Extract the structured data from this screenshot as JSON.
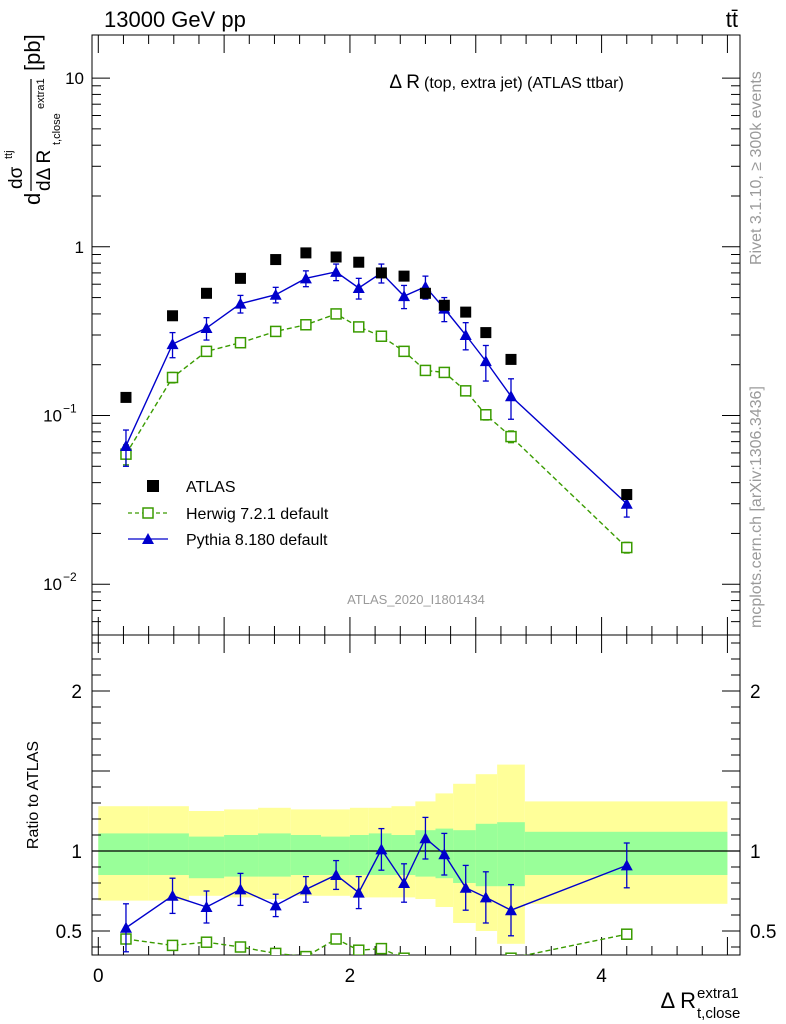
{
  "header": {
    "energy_label": "13000 GeV pp",
    "process_label": "tt̄"
  },
  "side_labels": {
    "rivet": "Rivet 3.1.10, ≥ 300k events",
    "mcplots": "mcplots.cern.ch [arXiv:1306.3436]"
  },
  "plot": {
    "title_main": "Δ R",
    "title_sub": "(top, extra jet) (ATLAS ttbar)",
    "analysis_id": "ATLAS_2020_I1801434",
    "y_label_main": "d",
    "y_label_frac_num": "dσ",
    "y_label_frac_num_sup": "ttj",
    "y_label_frac_den": "dΔ R",
    "y_label_frac_den_sub": "t,close",
    "y_label_frac_den_sup": "extra1",
    "y_label_unit": "[pb]",
    "ratio_y_label": "Ratio to ATLAS",
    "x_label_main": "Δ R",
    "x_label_sup": "extra1",
    "x_label_sub": "t,close"
  },
  "legend": [
    {
      "name": "ATLAS",
      "color": "#000000",
      "marker": "filled-square"
    },
    {
      "name": "Herwig 7.2.1 default",
      "color": "#3a9b00",
      "marker": "open-square-dashed"
    },
    {
      "name": "Pythia 8.180 default",
      "color": "#0000cc",
      "marker": "filled-triangle"
    }
  ],
  "chart_data": [
    {
      "type": "scatter",
      "panel": "main",
      "y_scale": "log",
      "xlim": [
        -0.05,
        5.1
      ],
      "ylim": [
        0.005,
        18
      ],
      "yticks": [
        {
          "value": 0.01,
          "base": "10",
          "exp": "−2"
        },
        {
          "value": 0.1,
          "base": "10",
          "exp": "−1"
        },
        {
          "value": 1,
          "label": "1"
        },
        {
          "value": 10,
          "label": "10"
        }
      ],
      "series": [
        {
          "name": "ATLAS",
          "color": "#000000",
          "x": [
            0.22,
            0.59,
            0.86,
            1.13,
            1.41,
            1.65,
            1.89,
            2.07,
            2.25,
            2.43,
            2.6,
            2.75,
            2.92,
            3.08,
            3.28,
            4.2
          ],
          "y": [
            0.128,
            0.39,
            0.53,
            0.65,
            0.84,
            0.92,
            0.87,
            0.81,
            0.7,
            0.67,
            0.53,
            0.45,
            0.41,
            0.31,
            0.215,
            0.034
          ]
        },
        {
          "name": "Herwig 7.2.1 default",
          "color": "#3a9b00",
          "x": [
            0.22,
            0.59,
            0.86,
            1.13,
            1.41,
            1.65,
            1.89,
            2.07,
            2.25,
            2.43,
            2.6,
            2.75,
            2.92,
            3.08,
            3.28,
            4.2
          ],
          "y": [
            0.059,
            0.168,
            0.24,
            0.27,
            0.315,
            0.345,
            0.4,
            0.335,
            0.295,
            0.24,
            0.185,
            0.18,
            0.14,
            0.101,
            0.075,
            0.0165
          ],
          "err": [
            0.008,
            0.012,
            0.015,
            0.015,
            0.015,
            0.015,
            0.025,
            0.015,
            0.015,
            0.012,
            0.01,
            0.01,
            0.008,
            0.007,
            0.006,
            0.0012
          ]
        },
        {
          "name": "Pythia 8.180 default",
          "color": "#0000cc",
          "x": [
            0.22,
            0.59,
            0.86,
            1.13,
            1.41,
            1.65,
            1.89,
            2.07,
            2.25,
            2.43,
            2.6,
            2.75,
            2.92,
            3.08,
            3.28,
            4.2
          ],
          "y": [
            0.066,
            0.265,
            0.33,
            0.46,
            0.52,
            0.65,
            0.71,
            0.57,
            0.7,
            0.51,
            0.58,
            0.43,
            0.3,
            0.21,
            0.13,
            0.03
          ],
          "err": [
            0.016,
            0.045,
            0.05,
            0.055,
            0.055,
            0.07,
            0.08,
            0.08,
            0.09,
            0.08,
            0.09,
            0.07,
            0.055,
            0.05,
            0.035,
            0.005
          ]
        }
      ]
    },
    {
      "type": "scatter",
      "panel": "ratio",
      "xlim": [
        -0.05,
        5.1
      ],
      "ylim": [
        0.35,
        2.35
      ],
      "xticks": [
        0,
        2,
        4
      ],
      "yticks": [
        0.5,
        1,
        2
      ],
      "reference_line": 1,
      "band_edges": [
        0,
        0.4,
        0.72,
        1.0,
        1.27,
        1.53,
        1.77,
        2.0,
        2.15,
        2.33,
        2.52,
        2.68,
        2.82,
        3.0,
        3.17,
        3.39,
        5.0
      ],
      "band_inner_low": [
        0.85,
        0.85,
        0.83,
        0.84,
        0.84,
        0.85,
        0.85,
        0.85,
        0.85,
        0.85,
        0.84,
        0.83,
        0.8,
        0.78,
        0.78,
        0.85
      ],
      "band_inner_high": [
        1.11,
        1.11,
        1.09,
        1.1,
        1.11,
        1.1,
        1.09,
        1.1,
        1.11,
        1.1,
        1.13,
        1.14,
        1.13,
        1.17,
        1.18,
        1.12
      ],
      "band_outer_low": [
        0.69,
        0.69,
        0.72,
        0.71,
        0.7,
        0.72,
        0.72,
        0.71,
        0.71,
        0.71,
        0.7,
        0.65,
        0.55,
        0.5,
        0.42,
        0.67
      ],
      "band_outer_high": [
        1.28,
        1.28,
        1.25,
        1.26,
        1.27,
        1.26,
        1.26,
        1.27,
        1.27,
        1.28,
        1.31,
        1.36,
        1.42,
        1.48,
        1.54,
        1.31
      ],
      "series": [
        {
          "name": "Herwig 7.2.1 default",
          "color": "#3a9b00",
          "x": [
            0.22,
            0.59,
            0.86,
            1.13,
            1.41,
            1.65,
            1.89,
            2.07,
            2.25,
            2.43,
            2.6,
            2.75,
            2.92,
            3.08,
            3.28,
            4.2
          ],
          "y": [
            0.45,
            0.41,
            0.43,
            0.4,
            0.36,
            0.34,
            0.45,
            0.38,
            0.39,
            0.33,
            0.31,
            0.31,
            0.3,
            0.3,
            0.33,
            0.48
          ],
          "err": [
            0.02,
            0.02,
            0.02,
            0.015,
            0.015,
            0.015,
            0.02,
            0.015,
            0.015,
            0.015,
            0.015,
            0.015,
            0.015,
            0.015,
            0.015,
            0.03
          ]
        },
        {
          "name": "Pythia 8.180 default",
          "color": "#0000cc",
          "x": [
            0.22,
            0.59,
            0.86,
            1.13,
            1.41,
            1.65,
            1.89,
            2.07,
            2.25,
            2.43,
            2.6,
            2.75,
            2.92,
            3.08,
            3.28,
            4.2
          ],
          "y": [
            0.52,
            0.72,
            0.65,
            0.76,
            0.66,
            0.76,
            0.85,
            0.74,
            1.01,
            0.8,
            1.08,
            0.98,
            0.77,
            0.71,
            0.63,
            0.91
          ],
          "err": [
            0.15,
            0.11,
            0.1,
            0.1,
            0.07,
            0.08,
            0.09,
            0.1,
            0.13,
            0.12,
            0.13,
            0.13,
            0.14,
            0.16,
            0.16,
            0.14
          ]
        }
      ]
    }
  ]
}
